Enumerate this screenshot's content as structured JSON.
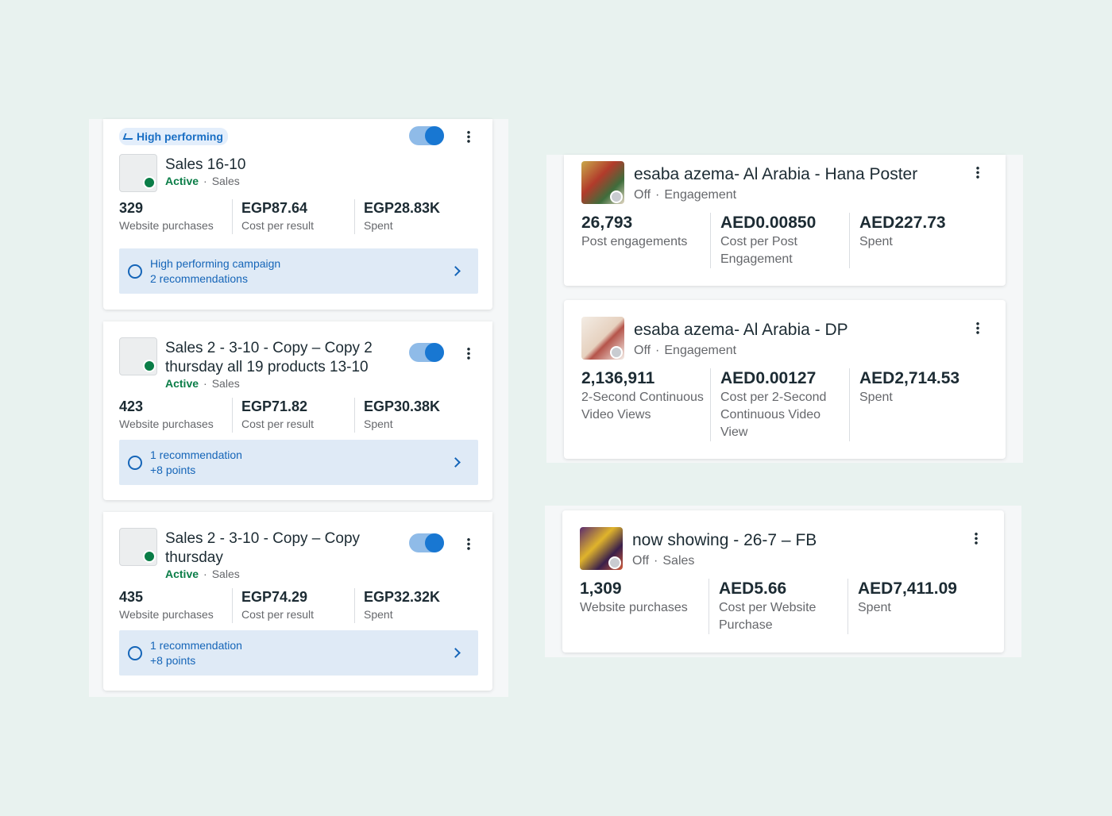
{
  "left_campaigns": [
    {
      "badge": "High performing",
      "name": "Sales 16-10",
      "status": "Active",
      "objective": "Sales",
      "metrics": [
        {
          "value": "329",
          "label": "Website purchases"
        },
        {
          "value": "EGP87.64",
          "label": "Cost per result"
        },
        {
          "value": "EGP28.83K",
          "label": "Spent"
        }
      ],
      "recommendation": {
        "title": "High performing campaign",
        "subtitle": "2 recommendations"
      }
    },
    {
      "name": "Sales 2 - 3-10 - Copy – Copy 2 thursday all 19 products 13-10",
      "status": "Active",
      "objective": "Sales",
      "metrics": [
        {
          "value": "423",
          "label": "Website purchases"
        },
        {
          "value": "EGP71.82",
          "label": "Cost per result"
        },
        {
          "value": "EGP30.38K",
          "label": "Spent"
        }
      ],
      "recommendation": {
        "title": "1 recommendation",
        "subtitle": "+8 points"
      }
    },
    {
      "name": "Sales 2 - 3-10 - Copy – Copy thursday",
      "status": "Active",
      "objective": "Sales",
      "metrics": [
        {
          "value": "435",
          "label": "Website purchases"
        },
        {
          "value": "EGP74.29",
          "label": "Cost per result"
        },
        {
          "value": "EGP32.32K",
          "label": "Spent"
        }
      ],
      "recommendation": {
        "title": "1 recommendation",
        "subtitle": "+8 points"
      }
    }
  ],
  "right_campaigns": [
    {
      "name": "esaba azema- Al Arabia - Hana Poster",
      "status": "Off",
      "objective": "Engagement",
      "metrics": [
        {
          "value": "26,793",
          "label": "Post engagements"
        },
        {
          "value": "AED0.00850",
          "label": "Cost per Post Engagement"
        },
        {
          "value": "AED227.73",
          "label": "Spent"
        }
      ]
    },
    {
      "name": "esaba azema- Al Arabia - DP",
      "status": "Off",
      "objective": "Engagement",
      "metrics": [
        {
          "value": "2,136,911",
          "label": "2-Second Continuous Video Views"
        },
        {
          "value": "AED0.00127",
          "label": "Cost per 2-Second Continuous Video View"
        },
        {
          "value": "AED2,714.53",
          "label": "Spent"
        }
      ]
    },
    {
      "name": "now showing - 26-7 – FB",
      "status": "Off",
      "objective": "Sales",
      "metrics": [
        {
          "value": "1,309",
          "label": "Website purchases"
        },
        {
          "value": "AED5.66",
          "label": "Cost per Website Purchase"
        },
        {
          "value": "AED7,411.09",
          "label": "Spent"
        }
      ]
    }
  ]
}
